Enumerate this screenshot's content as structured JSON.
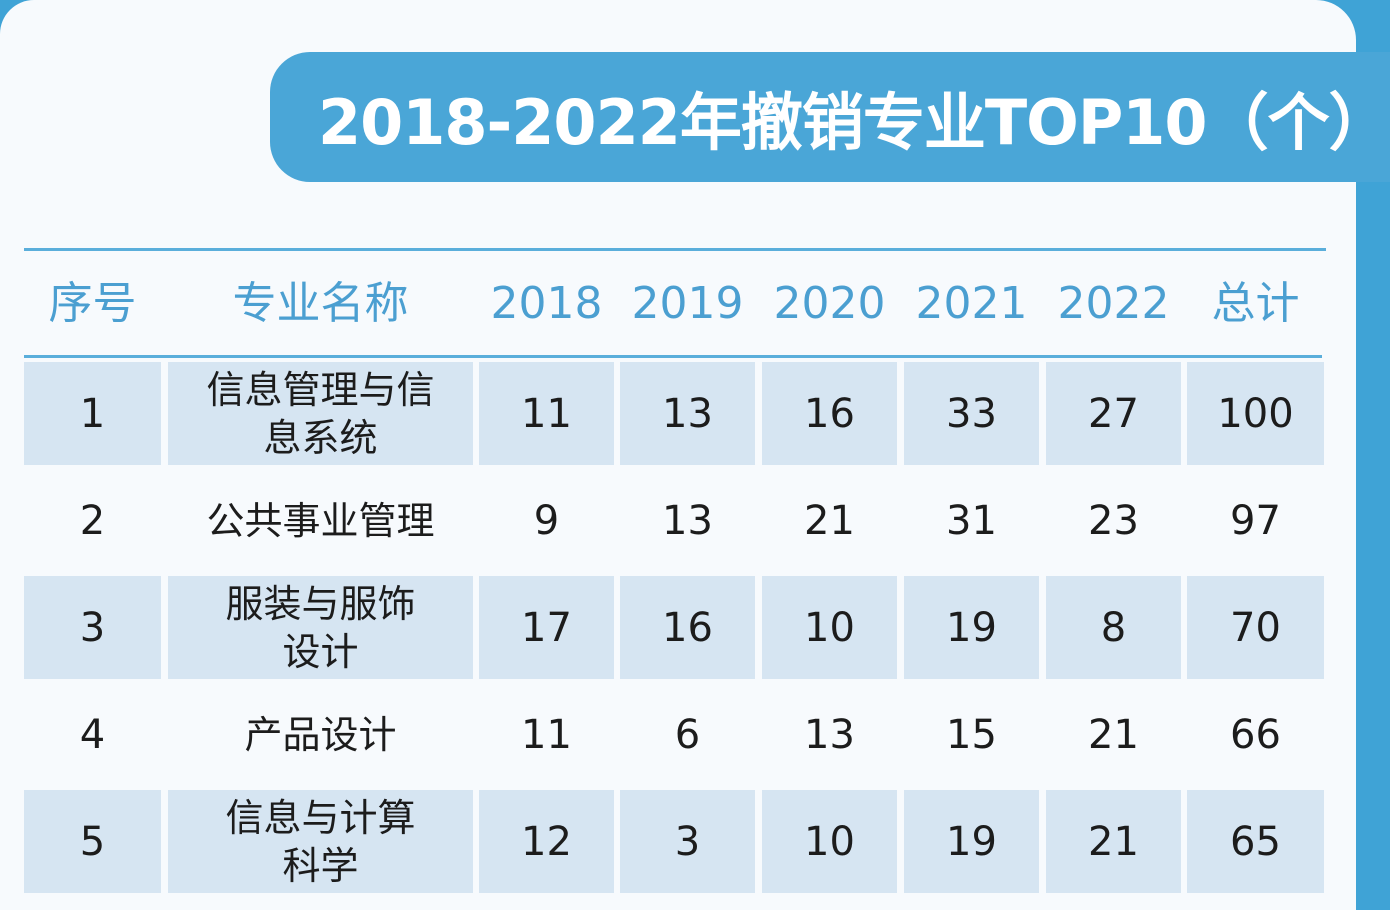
{
  "title": "2018-2022年撤销专业TOP10（个）",
  "colors": {
    "frame": "#3fa3d6",
    "banner": "#4aa6d7",
    "header_text": "#4b9fd1",
    "row_shade": "#d6e5f2",
    "card_bg": "#f7fafd"
  },
  "chart_data": {
    "type": "table",
    "title": "2018-2022年撤销专业TOP10（个）",
    "columns": [
      "序号",
      "专业名称",
      "2018",
      "2019",
      "2020",
      "2021",
      "2022",
      "总计"
    ],
    "rows": [
      {
        "rank": "1",
        "name": "信息管理与信息系统",
        "name_lines": [
          "信息管理与信",
          "息系统"
        ],
        "values": [
          "11",
          "13",
          "16",
          "33",
          "27",
          "100"
        ]
      },
      {
        "rank": "2",
        "name": "公共事业管理",
        "name_lines": [
          "公共事业管理"
        ],
        "values": [
          "9",
          "13",
          "21",
          "31",
          "23",
          "97"
        ]
      },
      {
        "rank": "3",
        "name": "服装与服饰设计",
        "name_lines": [
          "服装与服饰",
          "设计"
        ],
        "values": [
          "17",
          "16",
          "10",
          "19",
          "8",
          "70"
        ]
      },
      {
        "rank": "4",
        "name": "产品设计",
        "name_lines": [
          "产品设计"
        ],
        "values": [
          "11",
          "6",
          "13",
          "15",
          "21",
          "66"
        ]
      },
      {
        "rank": "5",
        "name": "信息与计算科学",
        "name_lines": [
          "信息与计算",
          "科学"
        ],
        "values": [
          "12",
          "3",
          "10",
          "19",
          "21",
          "65"
        ]
      }
    ]
  }
}
